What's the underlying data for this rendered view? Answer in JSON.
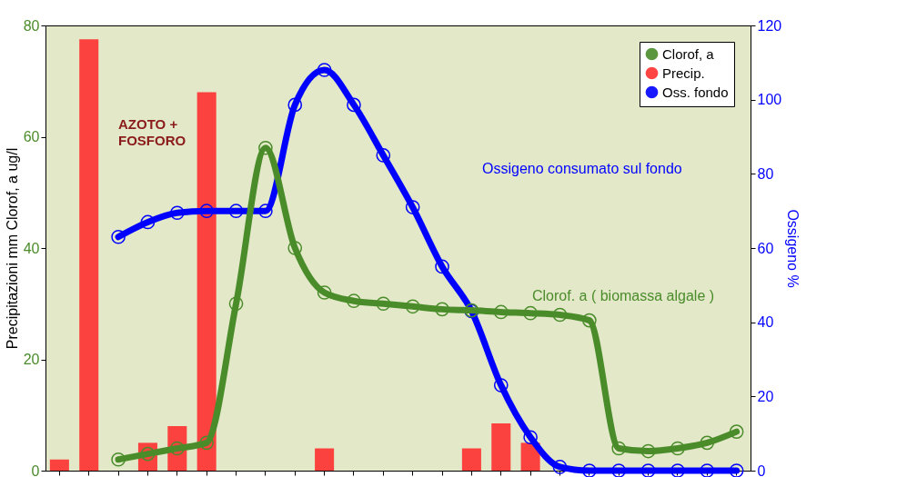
{
  "chart_data": {
    "type": "bar",
    "categories": [
      null,
      null,
      null,
      null,
      null,
      null,
      null,
      null,
      null,
      null,
      null,
      null,
      null,
      null,
      null,
      null,
      null,
      null,
      null,
      null,
      null,
      null,
      null,
      null
    ],
    "series": [
      {
        "name": "Clorof, a",
        "type": "line",
        "color": "#4a8c2a",
        "values": [
          null,
          null,
          2,
          3,
          4,
          5,
          30,
          58,
          40,
          32,
          30.5,
          30,
          29.5,
          29,
          28.8,
          28.5,
          28.3,
          28,
          27,
          4,
          3.5,
          4,
          5,
          7
        ]
      },
      {
        "name": "Precip.",
        "color": "#ff3030",
        "values": [
          2,
          77.5,
          null,
          5,
          8,
          68,
          null,
          null,
          null,
          4,
          null,
          null,
          null,
          null,
          4,
          8.5,
          5,
          null,
          null,
          null,
          null,
          null,
          null,
          null
        ]
      },
      {
        "name": "Oss. fondo",
        "type": "line",
        "axis": "y2",
        "color": "#0000ff",
        "values": [
          null,
          null,
          63,
          67,
          69.5,
          70,
          70,
          70,
          98.6,
          108,
          98.6,
          85,
          71,
          55,
          43,
          23,
          9,
          1,
          0,
          0,
          0,
          0,
          0,
          0
        ]
      }
    ],
    "ylabel": "Precipitazioni mm  Clorof, a ug/l",
    "y2label": "Ossigeno %",
    "ylim": [
      0,
      80
    ],
    "yticks": [
      0,
      20,
      40,
      60,
      80
    ],
    "y2lim": [
      0,
      120
    ],
    "y2ticks": [
      0,
      20,
      40,
      60,
      80,
      100,
      120
    ],
    "annotations": [
      "AZOTO + FOSFORO",
      "Ossigeno consumato sul fondo",
      "Clorof. a ( biomassa algale )"
    ],
    "legend": "top right",
    "grid": false,
    "marker": "circle"
  }
}
